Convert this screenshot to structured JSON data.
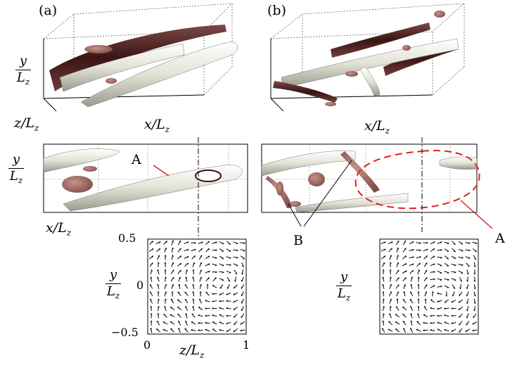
{
  "panels": {
    "a": {
      "label": "(a)"
    },
    "b": {
      "label": "(b)"
    }
  },
  "axes": {
    "y_num": "y",
    "y_den": "L",
    "z_sub": "z",
    "x_over": "x/L",
    "z_over": "z/L",
    "z_axis_lower_left": "z/L"
  },
  "annotations": {
    "A": "A",
    "B": "B"
  },
  "vector_plot_a": {
    "yticks": [
      "0.5",
      "0",
      "−0.5"
    ],
    "xticks": [
      "0",
      "1"
    ],
    "xlabel": "z/L"
  },
  "colors": {
    "dark_streak": "#4a1f1e",
    "light_streak": "#e7e6dc",
    "pink_blob": "#a7716a",
    "dashed_red": "#e02020"
  }
}
